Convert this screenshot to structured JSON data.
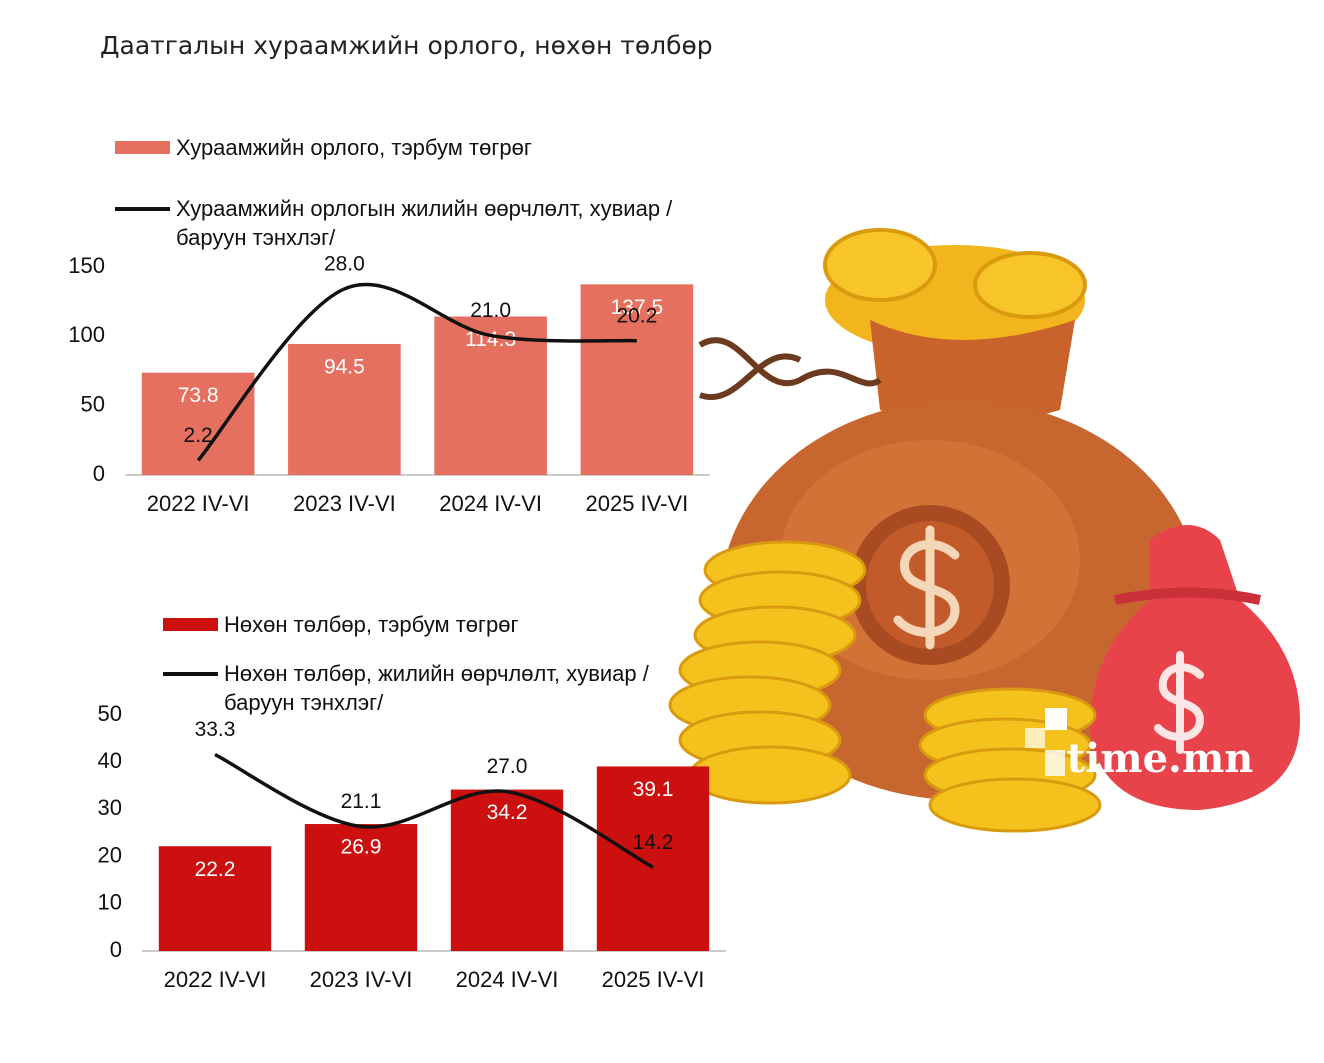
{
  "title": "Даатгалын хураамжийн орлого, нөхөн төлбөр",
  "watermark": "time.mn",
  "chart_data": [
    {
      "type": "bar",
      "categories": [
        "2022 IV-VI",
        "2023 IV-VI",
        "2024 IV-VI",
        "2025 IV-VI"
      ],
      "series": [
        {
          "name": "Хураамжийн орлого, тэрбум төгрөг",
          "type": "bar",
          "color": "#e5705f",
          "values": [
            73.8,
            94.5,
            114.3,
            137.5
          ],
          "value_labels": [
            "73.8",
            "94.5",
            "114.3",
            "137.5"
          ]
        },
        {
          "name": "Хураамжийн орлогын жилийн өөрчлөлт, хувиар /баруун тэнхлэг/",
          "type": "line",
          "axis": "y2",
          "color": "#111111",
          "values": [
            2.2,
            28.0,
            21.0,
            20.2
          ],
          "value_labels": [
            "2.2",
            "28.0",
            "21.0",
            "20.2"
          ]
        }
      ],
      "ylim": [
        0,
        150
      ],
      "yticks": [
        0,
        50,
        100,
        150
      ],
      "y2lim": [
        0,
        31.3
      ]
    },
    {
      "type": "bar",
      "categories": [
        "2022 IV-VI",
        "2023 IV-VI",
        "2024 IV-VI",
        "2025 IV-VI"
      ],
      "series": [
        {
          "name": "Нөхөн төлбөр, тэрбум төгрөг",
          "type": "bar",
          "color": "#cc1010",
          "values": [
            22.2,
            26.9,
            34.2,
            39.1
          ],
          "value_labels": [
            "22.2",
            "26.9",
            "34.2",
            "39.1"
          ]
        },
        {
          "name": "Нөхөн төлбөр, жилийн өөрчлөлт, хувиар /баруун тэнхлэг/",
          "type": "line",
          "axis": "y2",
          "color": "#111111",
          "values": [
            33.3,
            21.1,
            27.0,
            14.2
          ],
          "value_labels": [
            "33.3",
            "21.1",
            "27.0",
            "14.2"
          ]
        }
      ],
      "ylim": [
        0,
        50
      ],
      "yticks": [
        0,
        10,
        20,
        30,
        40,
        50
      ],
      "y2lim": [
        0,
        40
      ]
    }
  ]
}
